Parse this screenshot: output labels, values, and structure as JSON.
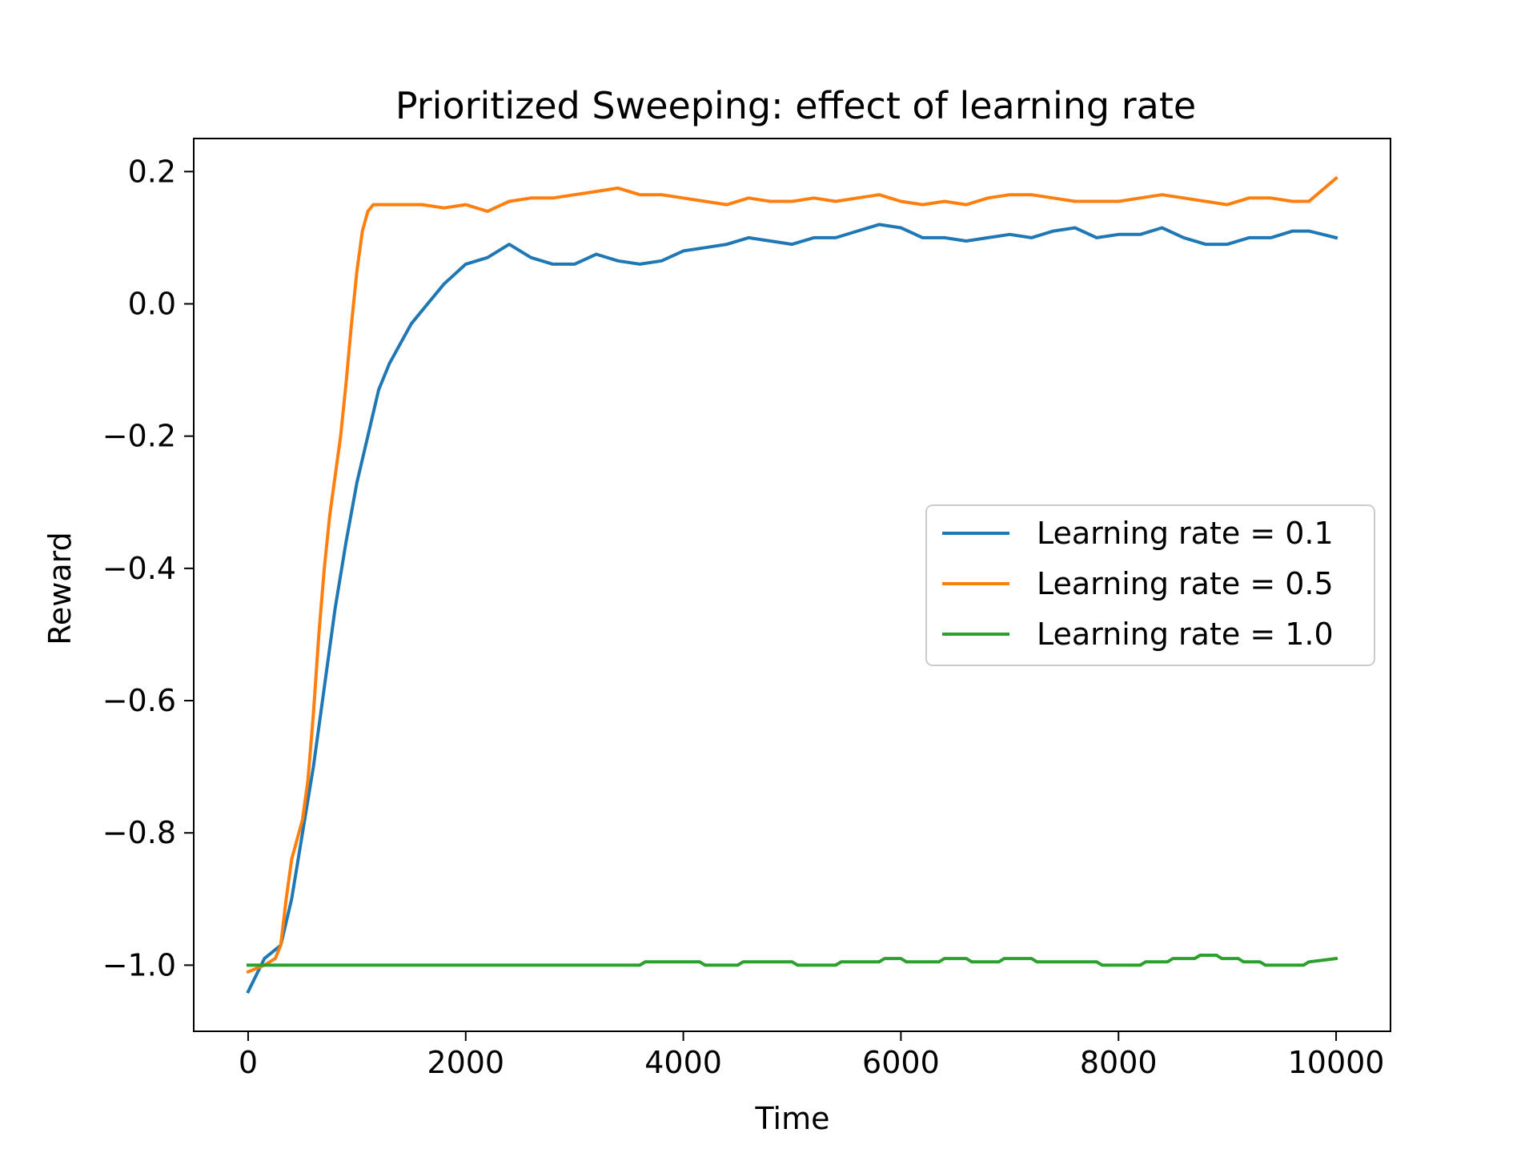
{
  "chart_data": {
    "type": "line",
    "title": "Prioritized Sweeping: effect of learning rate",
    "xlabel": "Time",
    "ylabel": "Reward",
    "xlim": [
      -500,
      10500
    ],
    "ylim": [
      -1.1,
      0.25
    ],
    "x_ticks": [
      0,
      2000,
      4000,
      6000,
      8000,
      10000
    ],
    "x_tick_labels": [
      "0",
      "2000",
      "4000",
      "6000",
      "8000",
      "10000"
    ],
    "y_ticks": [
      -1.0,
      -0.8,
      -0.6,
      -0.4,
      -0.2,
      0.0,
      0.2
    ],
    "y_tick_labels": [
      "−1.0",
      "−0.8",
      "−0.6",
      "−0.4",
      "−0.2",
      "0.0",
      "0.2"
    ],
    "grid": false,
    "legend_position": "center-right",
    "series": [
      {
        "name": "Learning rate = 0.1",
        "color": "#1f77b4",
        "x": [
          0,
          150,
          300,
          400,
          500,
          600,
          700,
          800,
          900,
          1000,
          1100,
          1200,
          1300,
          1400,
          1500,
          1600,
          1700,
          1800,
          1900,
          2000,
          2200,
          2400,
          2600,
          2800,
          3000,
          3200,
          3400,
          3600,
          3800,
          4000,
          4200,
          4400,
          4600,
          4800,
          5000,
          5200,
          5400,
          5600,
          5800,
          6000,
          6200,
          6400,
          6600,
          6800,
          7000,
          7200,
          7400,
          7600,
          7800,
          8000,
          8200,
          8400,
          8600,
          8800,
          9000,
          9200,
          9400,
          9600,
          9750,
          10000
        ],
        "y": [
          -1.04,
          -0.99,
          -0.97,
          -0.9,
          -0.8,
          -0.7,
          -0.58,
          -0.46,
          -0.36,
          -0.27,
          -0.2,
          -0.13,
          -0.09,
          -0.06,
          -0.03,
          -0.01,
          0.01,
          0.03,
          0.045,
          0.06,
          0.07,
          0.09,
          0.07,
          0.06,
          0.06,
          0.075,
          0.065,
          0.06,
          0.065,
          0.08,
          0.085,
          0.09,
          0.1,
          0.095,
          0.09,
          0.1,
          0.1,
          0.11,
          0.12,
          0.115,
          0.1,
          0.1,
          0.095,
          0.1,
          0.105,
          0.1,
          0.11,
          0.115,
          0.1,
          0.105,
          0.105,
          0.115,
          0.1,
          0.09,
          0.09,
          0.1,
          0.1,
          0.11,
          0.11,
          0.1
        ]
      },
      {
        "name": "Learning rate = 0.5",
        "color": "#ff7f0e",
        "x": [
          0,
          150,
          250,
          300,
          350,
          400,
          450,
          500,
          550,
          600,
          650,
          700,
          750,
          800,
          850,
          900,
          950,
          1000,
          1050,
          1100,
          1150,
          1200,
          1300,
          1400,
          1600,
          1800,
          2000,
          2200,
          2400,
          2600,
          2800,
          3000,
          3200,
          3400,
          3600,
          3800,
          4000,
          4200,
          4400,
          4600,
          4800,
          5000,
          5200,
          5400,
          5600,
          5800,
          6000,
          6200,
          6400,
          6600,
          6800,
          7000,
          7200,
          7400,
          7600,
          7800,
          8000,
          8200,
          8400,
          8600,
          8800,
          9000,
          9200,
          9400,
          9600,
          9750,
          10000
        ],
        "y": [
          -1.01,
          -1.0,
          -0.99,
          -0.97,
          -0.9,
          -0.84,
          -0.81,
          -0.78,
          -0.72,
          -0.62,
          -0.5,
          -0.4,
          -0.32,
          -0.26,
          -0.2,
          -0.12,
          -0.03,
          0.05,
          0.11,
          0.14,
          0.15,
          0.15,
          0.15,
          0.15,
          0.15,
          0.145,
          0.15,
          0.14,
          0.155,
          0.16,
          0.16,
          0.165,
          0.17,
          0.175,
          0.165,
          0.165,
          0.16,
          0.155,
          0.15,
          0.16,
          0.155,
          0.155,
          0.16,
          0.155,
          0.16,
          0.165,
          0.155,
          0.15,
          0.155,
          0.15,
          0.16,
          0.165,
          0.165,
          0.16,
          0.155,
          0.155,
          0.155,
          0.16,
          0.165,
          0.16,
          0.155,
          0.15,
          0.16,
          0.16,
          0.155,
          0.155,
          0.19
        ]
      },
      {
        "name": "Learning rate = 1.0",
        "color": "#2ca02c",
        "x": [
          0,
          3600,
          3650,
          4150,
          4200,
          4500,
          4550,
          5000,
          5050,
          5400,
          5450,
          5800,
          5850,
          6000,
          6050,
          6350,
          6400,
          6600,
          6650,
          6900,
          6950,
          7200,
          7250,
          7800,
          7850,
          8200,
          8250,
          8450,
          8500,
          8700,
          8750,
          8900,
          8950,
          9100,
          9150,
          9300,
          9350,
          9700,
          9750,
          10000
        ],
        "y": [
          -1.0,
          -1.0,
          -0.995,
          -0.995,
          -1.0,
          -1.0,
          -0.995,
          -0.995,
          -1.0,
          -1.0,
          -0.995,
          -0.995,
          -0.99,
          -0.99,
          -0.995,
          -0.995,
          -0.99,
          -0.99,
          -0.995,
          -0.995,
          -0.99,
          -0.99,
          -0.995,
          -0.995,
          -1.0,
          -1.0,
          -0.995,
          -0.995,
          -0.99,
          -0.99,
          -0.985,
          -0.985,
          -0.99,
          -0.99,
          -0.995,
          -0.995,
          -1.0,
          -1.0,
          -0.995,
          -0.99
        ]
      }
    ]
  }
}
